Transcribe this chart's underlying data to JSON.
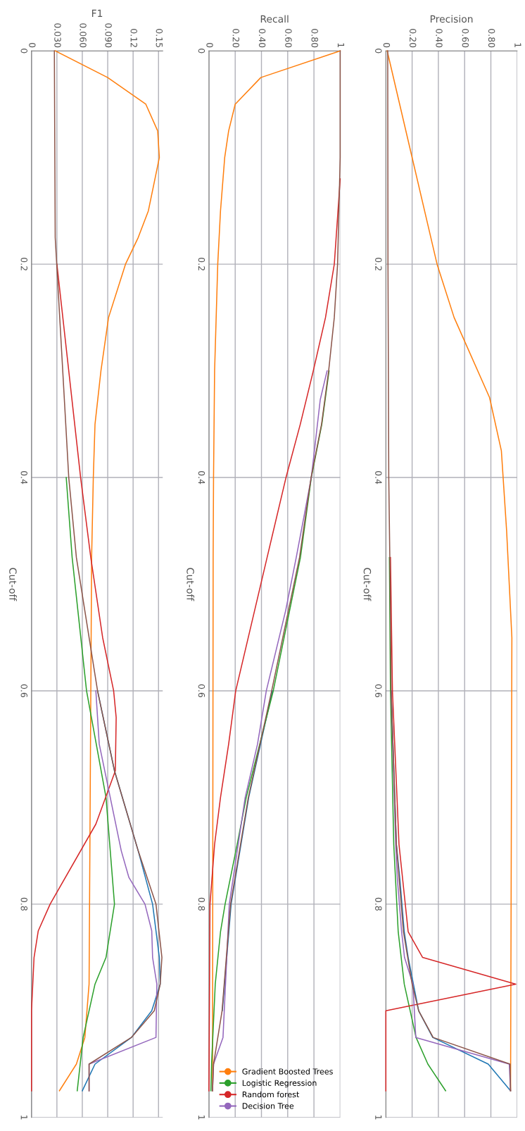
{
  "chart_data": [
    {
      "type": "line",
      "orientation": "horizontal",
      "xlabel": "Precision",
      "ylabel": "Cut-off",
      "grid": true,
      "xlim": [
        0,
        1
      ],
      "xticks": [
        0,
        {
          "value": 0.2,
          "label": "0.20"
        },
        {
          "value": 0.4,
          "label": "0.40"
        },
        {
          "value": 0.6,
          "label": "0.60"
        },
        {
          "value": 0.8,
          "label": "0.80"
        },
        1
      ],
      "ylim": [
        1,
        0
      ],
      "yticks": [
        0,
        0.2,
        0.4,
        0.6,
        0.8,
        1
      ],
      "series": [
        {
          "color": "#1f77b4",
          "x": [
            0.6,
            0.744,
            0.777,
            0.826,
            0.85,
            0.9,
            0.925,
            0.95,
            0.975
          ],
          "values": [
            0.04,
            0.08,
            0.107,
            0.14,
            0.17,
            0.25,
            0.357,
            0.78,
            0.95
          ]
        },
        {
          "color": "#ff7f0e",
          "x": [
            0,
            0.1,
            0.2,
            0.25,
            0.325,
            0.375,
            0.45,
            0.5,
            0.55,
            0.975
          ],
          "values": [
            0.01,
            0.2,
            0.39,
            0.52,
            0.79,
            0.88,
            0.92,
            0.94,
            0.96,
            0.95
          ]
        },
        {
          "color": "#2ca02c",
          "x": [
            0.475,
            0.6,
            0.744,
            0.826,
            0.875,
            0.925,
            0.95,
            0.975
          ],
          "values": [
            0.027,
            0.035,
            0.06,
            0.094,
            0.14,
            0.23,
            0.32,
            0.455
          ]
        },
        {
          "color": "#d62728",
          "x": [
            0.475,
            0.6,
            0.744,
            0.826,
            0.85,
            0.875,
            0.9,
            0.975
          ],
          "values": [
            0.035,
            0.05,
            0.1,
            0.17,
            0.28,
            0.99,
            0,
            0
          ]
        },
        {
          "color": "#9467bd",
          "x": [
            0.6,
            0.744,
            0.777,
            0.826,
            0.85,
            0.875,
            0.925,
            0.95,
            0.975
          ],
          "values": [
            0.04,
            0.075,
            0.088,
            0.12,
            0.142,
            0.206,
            0.228,
            0.94,
            0.95
          ]
        },
        {
          "color": "#8c564b",
          "x": [
            0,
            0.2,
            0.4,
            0.475,
            0.6,
            0.744,
            0.826,
            0.875,
            0.9,
            0.925,
            0.95,
            0.975
          ],
          "values": [
            0.014,
            0.016,
            0.022,
            0.03,
            0.04,
            0.08,
            0.134,
            0.2,
            0.25,
            0.36,
            0.946,
            0.95
          ]
        }
      ]
    },
    {
      "type": "line",
      "orientation": "horizontal",
      "xlabel": "Recall",
      "ylabel": "Cut-off",
      "grid": true,
      "legend": "bottom right",
      "xlim": [
        0,
        1
      ],
      "xticks": [
        0,
        {
          "value": 0.2,
          "label": "0.20"
        },
        {
          "value": 0.4,
          "label": "0.40"
        },
        {
          "value": 0.6,
          "label": "0.60"
        },
        {
          "value": 0.8,
          "label": "0.80"
        },
        1
      ],
      "ylim": [
        1,
        0
      ],
      "yticks": [
        0,
        0.2,
        0.4,
        0.6,
        0.8,
        1
      ],
      "series": [
        {
          "color": "#1f77b4",
          "x": [
            0.6,
            0.7,
            0.8,
            0.9
          ],
          "values": [
            0.483,
            0.303,
            0.169,
            0.102
          ]
        },
        {
          "name": "Gradient Boosted Trees",
          "color": "#ff7f0e",
          "x": [
            0,
            0.025,
            0.05,
            0.075,
            0.1,
            0.15,
            0.2,
            0.3,
            0.4,
            0.475,
            0.975
          ],
          "values": [
            1,
            0.395,
            0.2,
            0.15,
            0.12,
            0.088,
            0.067,
            0.043,
            0.035,
            0.032,
            0.027
          ]
        },
        {
          "name": "Logistic Regression",
          "color": "#2ca02c",
          "x": [
            0.3,
            0.35,
            0.4,
            0.475,
            0.6,
            0.7,
            0.744,
            0.8,
            0.826,
            0.875,
            0.95,
            0.975
          ],
          "values": [
            0.915,
            0.86,
            0.78,
            0.697,
            0.49,
            0.284,
            0.215,
            0.123,
            0.088,
            0.048,
            0.02,
            0.015
          ]
        },
        {
          "name": "Random forest",
          "color": "#d62728",
          "x": [
            0.12,
            0.2,
            0.25,
            0.3,
            0.35,
            0.4,
            0.475,
            0.6,
            0.65,
            0.7,
            0.744,
            0.8,
            0.975
          ],
          "values": [
            1,
            0.955,
            0.888,
            0.795,
            0.696,
            0.587,
            0.443,
            0.204,
            0.15,
            0.088,
            0.043,
            0.008,
            0
          ]
        },
        {
          "name": "Decision Tree",
          "color": "#9467bd",
          "x": [
            0.3,
            0.327,
            0.4,
            0.475,
            0.525,
            0.6,
            0.65,
            0.7,
            0.8,
            0.925,
            0.95,
            0.975
          ],
          "values": [
            0.9,
            0.848,
            0.78,
            0.665,
            0.584,
            0.437,
            0.37,
            0.276,
            0.155,
            0.107,
            0.035,
            0.027
          ]
        },
        {
          "color": "#8c564b",
          "x": [
            0,
            0.1,
            0.2,
            0.25,
            0.3,
            0.35,
            0.4,
            0.475,
            0.6,
            0.7,
            0.8,
            0.9,
            0.95,
            0.975
          ],
          "values": [
            1,
            1,
            0.98,
            0.955,
            0.912,
            0.858,
            0.778,
            0.69,
            0.478,
            0.3,
            0.165,
            0.1,
            0.035,
            0.027
          ]
        }
      ]
    },
    {
      "type": "line",
      "orientation": "horizontal",
      "xlabel": "F1",
      "ylabel": "Cut-off",
      "grid": true,
      "xlim": [
        0,
        0.155
      ],
      "xticks": [
        0,
        {
          "value": 0.03,
          "label": "0.030"
        },
        {
          "value": 0.06,
          "label": "0.060"
        },
        {
          "value": 0.09,
          "label": "0.090"
        },
        0.12,
        0.15
      ],
      "ylim": [
        1,
        0
      ],
      "yticks": [
        0,
        0.2,
        0.4,
        0.6,
        0.8,
        1
      ],
      "series": [
        {
          "color": "#1f77b4",
          "x": [
            0.6,
            0.675,
            0.75,
            0.8,
            0.85,
            0.875,
            0.9,
            0.925,
            0.95,
            0.975
          ],
          "values": [
            0.078,
            0.098,
            0.126,
            0.143,
            0.151,
            0.152,
            0.142,
            0.118,
            0.075,
            0.06
          ]
        },
        {
          "color": "#ff7f0e",
          "x": [
            0,
            0.025,
            0.05,
            0.075,
            0.1,
            0.15,
            0.175,
            0.2,
            0.25,
            0.3,
            0.35,
            0.4,
            0.475,
            0.875,
            0.925,
            0.95,
            0.975
          ],
          "values": [
            0.028,
            0.09,
            0.135,
            0.149,
            0.151,
            0.138,
            0.126,
            0.111,
            0.091,
            0.082,
            0.075,
            0.073,
            0.071,
            0.068,
            0.063,
            0.053,
            0.033
          ]
        },
        {
          "color": "#2ca02c",
          "x": [
            0.4,
            0.475,
            0.6,
            0.7,
            0.8,
            0.825,
            0.85,
            0.875,
            0.925,
            0.975
          ],
          "values": [
            0.041,
            0.048,
            0.065,
            0.088,
            0.098,
            0.093,
            0.088,
            0.075,
            0.061,
            0.054
          ]
        },
        {
          "color": "#d62728",
          "x": [
            0.2,
            0.4,
            0.475,
            0.55,
            0.6,
            0.625,
            0.675,
            0.725,
            0.8,
            0.825,
            0.85,
            0.9,
            0.975
          ],
          "values": [
            0.03,
            0.058,
            0.07,
            0.084,
            0.097,
            0.1,
            0.099,
            0.076,
            0.022,
            0.008,
            0.003,
            0,
            0
          ]
        },
        {
          "color": "#9467bd",
          "x": [
            0.6,
            0.65,
            0.75,
            0.775,
            0.8,
            0.825,
            0.85,
            0.875,
            0.925,
            0.95,
            0.975
          ],
          "values": [
            0.076,
            0.08,
            0.106,
            0.115,
            0.134,
            0.142,
            0.143,
            0.148,
            0.147,
            0.068,
            0.068
          ]
        },
        {
          "color": "#8c564b",
          "x": [
            0,
            0.175,
            0.4,
            0.475,
            0.6,
            0.675,
            0.75,
            0.8,
            0.85,
            0.875,
            0.9,
            0.925,
            0.95,
            0.975
          ],
          "values": [
            0.027,
            0.028,
            0.044,
            0.053,
            0.078,
            0.098,
            0.126,
            0.147,
            0.154,
            0.152,
            0.145,
            0.118,
            0.068,
            0.068
          ]
        }
      ]
    }
  ]
}
